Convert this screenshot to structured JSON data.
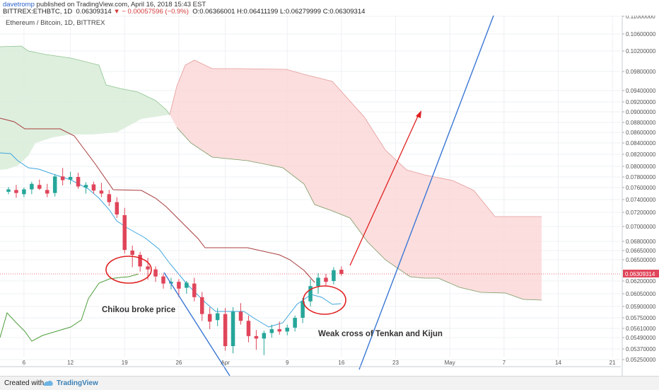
{
  "header": {
    "author": "davetromp",
    "published": "published on TradingView.com, April 16, 2018 15:43 EST",
    "symbol": "BITTREX:ETHBTC, 1D",
    "last": "0.06309314",
    "change": "− 0.00057596 (−0.9%)",
    "ohlc": "O:0.06366001 H:0.06411199 L:0.06279999 C:0.06309314"
  },
  "footer": {
    "created_with": "Created with",
    "brand": "TradingView"
  },
  "chart_data": {
    "type": "candlestick",
    "title": "Ethereum / Bitcoin, 1D, BITTREX",
    "y_axis_labels": [
      "0.11000000",
      "0.10600000",
      "0.10200000",
      "0.09800000",
      "0.09400000",
      "0.09200000",
      "0.09000000",
      "0.08800000",
      "0.08600000",
      "0.08400000",
      "0.08200000",
      "0.08000000",
      "0.07800000",
      "0.07600000",
      "0.07400000",
      "0.07200000",
      "0.07000000",
      "0.06800000",
      "0.06650000",
      "0.06500000",
      "0.06309314",
      "0.06200000",
      "0.06050000",
      "0.05900000",
      "0.05750000",
      "0.05610000",
      "0.05490000",
      "0.05370000",
      "0.05250000"
    ],
    "x_axis_labels": [
      "6",
      "12",
      "19",
      "26",
      "Apr",
      "9",
      "16",
      "23",
      "May",
      "7",
      "14",
      "21"
    ],
    "last_price_label": "0.06309314",
    "colors": {
      "up": "#26a69a",
      "down": "#e0455a",
      "tenkan": "#3ea6de",
      "kijun": "#a83c3c",
      "chikou": "#4f9f3c",
      "cloud_bull": "#d8ecd8",
      "cloud_bear": "#fbd6d6",
      "trend": "#3a77d4",
      "arrow": "#e02020"
    },
    "candles": [
      {
        "date": "Mar 4",
        "o": 0.0753,
        "h": 0.0761,
        "l": 0.0749,
        "c": 0.0757
      },
      {
        "date": "Mar 5",
        "o": 0.0756,
        "h": 0.0765,
        "l": 0.0743,
        "c": 0.0751
      },
      {
        "date": "Mar 6",
        "o": 0.0749,
        "h": 0.076,
        "l": 0.0744,
        "c": 0.0757
      },
      {
        "date": "Mar 7",
        "o": 0.0757,
        "h": 0.0771,
        "l": 0.0749,
        "c": 0.0767
      },
      {
        "date": "Mar 8",
        "o": 0.0765,
        "h": 0.0775,
        "l": 0.0756,
        "c": 0.0758
      },
      {
        "date": "Mar 9",
        "o": 0.0756,
        "h": 0.0767,
        "l": 0.0744,
        "c": 0.075
      },
      {
        "date": "Mar 10",
        "o": 0.0751,
        "h": 0.0785,
        "l": 0.0745,
        "c": 0.0781
      },
      {
        "date": "Mar 11",
        "o": 0.0781,
        "h": 0.0797,
        "l": 0.0764,
        "c": 0.0774
      },
      {
        "date": "Mar 12",
        "o": 0.0775,
        "h": 0.079,
        "l": 0.0766,
        "c": 0.078
      },
      {
        "date": "Mar 13",
        "o": 0.078,
        "h": 0.0788,
        "l": 0.0758,
        "c": 0.0762
      },
      {
        "date": "Mar 14",
        "o": 0.076,
        "h": 0.077,
        "l": 0.075,
        "c": 0.0765
      },
      {
        "date": "Mar 15",
        "o": 0.0766,
        "h": 0.0771,
        "l": 0.075,
        "c": 0.0755
      },
      {
        "date": "Mar 16",
        "o": 0.0755,
        "h": 0.0769,
        "l": 0.0744,
        "c": 0.075
      },
      {
        "date": "Mar 17",
        "o": 0.0749,
        "h": 0.0756,
        "l": 0.073,
        "c": 0.0736
      },
      {
        "date": "Mar 18",
        "o": 0.0736,
        "h": 0.0744,
        "l": 0.0712,
        "c": 0.0717
      },
      {
        "date": "Mar 19",
        "o": 0.0716,
        "h": 0.0727,
        "l": 0.066,
        "c": 0.0666
      },
      {
        "date": "Mar 20",
        "o": 0.0665,
        "h": 0.0673,
        "l": 0.064,
        "c": 0.0658
      },
      {
        "date": "Mar 21",
        "o": 0.0658,
        "h": 0.0663,
        "l": 0.0634,
        "c": 0.0641
      },
      {
        "date": "Mar 22",
        "o": 0.0641,
        "h": 0.0653,
        "l": 0.0622,
        "c": 0.0637
      },
      {
        "date": "Mar 23",
        "o": 0.0637,
        "h": 0.0641,
        "l": 0.0619,
        "c": 0.0627
      },
      {
        "date": "Mar 24",
        "o": 0.0627,
        "h": 0.0631,
        "l": 0.0611,
        "c": 0.0617
      },
      {
        "date": "Mar 25",
        "o": 0.0617,
        "h": 0.0625,
        "l": 0.061,
        "c": 0.0619
      },
      {
        "date": "Mar 26",
        "o": 0.0619,
        "h": 0.0623,
        "l": 0.0601,
        "c": 0.0611
      },
      {
        "date": "Mar 27",
        "o": 0.0612,
        "h": 0.062,
        "l": 0.0605,
        "c": 0.0618
      },
      {
        "date": "Mar 28",
        "o": 0.0617,
        "h": 0.0625,
        "l": 0.0596,
        "c": 0.0601
      },
      {
        "date": "Mar 29",
        "o": 0.0601,
        "h": 0.0607,
        "l": 0.0571,
        "c": 0.058
      },
      {
        "date": "Mar 30",
        "o": 0.058,
        "h": 0.0589,
        "l": 0.056,
        "c": 0.057
      },
      {
        "date": "Mar 31",
        "o": 0.0572,
        "h": 0.0588,
        "l": 0.0564,
        "c": 0.0581
      },
      {
        "date": "Apr 1",
        "o": 0.058,
        "h": 0.0588,
        "l": 0.0535,
        "c": 0.054
      },
      {
        "date": "Apr 2",
        "o": 0.054,
        "h": 0.0589,
        "l": 0.0532,
        "c": 0.0583
      },
      {
        "date": "Apr 3",
        "o": 0.0583,
        "h": 0.0594,
        "l": 0.0566,
        "c": 0.0571
      },
      {
        "date": "Apr 4",
        "o": 0.0571,
        "h": 0.0578,
        "l": 0.0544,
        "c": 0.0551
      },
      {
        "date": "Apr 5",
        "o": 0.0551,
        "h": 0.0559,
        "l": 0.0536,
        "c": 0.0548
      },
      {
        "date": "Apr 6",
        "o": 0.0548,
        "h": 0.0558,
        "l": 0.053,
        "c": 0.0555
      },
      {
        "date": "Apr 7",
        "o": 0.0555,
        "h": 0.0566,
        "l": 0.0549,
        "c": 0.056
      },
      {
        "date": "Apr 8",
        "o": 0.056,
        "h": 0.057,
        "l": 0.0553,
        "c": 0.0557
      },
      {
        "date": "Apr 9",
        "o": 0.0557,
        "h": 0.0566,
        "l": 0.0552,
        "c": 0.0562
      },
      {
        "date": "Apr 10",
        "o": 0.0562,
        "h": 0.0578,
        "l": 0.0557,
        "c": 0.0575
      },
      {
        "date": "Apr 11",
        "o": 0.0575,
        "h": 0.06,
        "l": 0.0568,
        "c": 0.0596
      },
      {
        "date": "Apr 12",
        "o": 0.0596,
        "h": 0.0623,
        "l": 0.059,
        "c": 0.0614
      },
      {
        "date": "Apr 13",
        "o": 0.0614,
        "h": 0.0632,
        "l": 0.0605,
        "c": 0.0625
      },
      {
        "date": "Apr 14",
        "o": 0.0625,
        "h": 0.0631,
        "l": 0.0614,
        "c": 0.0619
      },
      {
        "date": "Apr 15",
        "o": 0.062,
        "h": 0.064,
        "l": 0.0616,
        "c": 0.0636
      },
      {
        "date": "Apr 16",
        "o": 0.06366001,
        "h": 0.06411199,
        "l": 0.06279999,
        "c": 0.06309314
      }
    ],
    "annotations": [
      {
        "text": "Chikou broke price"
      },
      {
        "text": "Weak cross of Tenkan and Kijun"
      }
    ]
  }
}
